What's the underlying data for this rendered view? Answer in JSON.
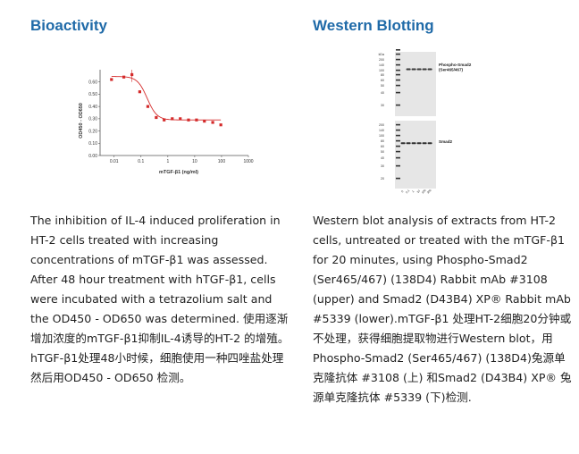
{
  "left": {
    "heading": "Bioactivity",
    "description": "The inhibition of IL-4 induced proliferation in HT-2 cells treated with increasing concentrations of mTGF-β1 was assessed. After 48 hour treatment with hTGF-β1, cells were incubated with a tetrazolium salt and the OD450 - OD650 was determined. 使用逐渐增加浓度的mTGF-β1抑制IL-4诱导的HT-2 的增殖。hTGF-β1处理48小时候，细胞使用一种四唑盐处理然后用OD450 - OD650 检测。"
  },
  "right": {
    "heading": "Western Blotting",
    "description": "Western blot analysis of extracts from HT-2 cells, untreated or treated with the mTGF-β1 for 20 minutes, using Phospho-Smad2 (Ser465/467) (138D4) Rabbit mAb #3108 (upper) and Smad2 (D43B4) XP® Rabbit mAb #5339 (lower).mTGF-β1 处理HT-2细胞20分钟或不处理，获得细胞提取物进行Western blot，用Phospho-Smad2 (Ser465/467) (138D4)兔源单克隆抗体 #3108 (上) 和Smad2 (D43B4) XP® 兔源单克隆抗体 #5339 (下)检测."
  },
  "chart_data": {
    "type": "scatter",
    "xlabel": "mTGF-β1 (ng/ml)",
    "ylabel": "OD450 - OD650",
    "x_scale": "log",
    "xlim": [
      0.003,
      1000
    ],
    "ylim": [
      0.0,
      0.7
    ],
    "xticks": [
      "0.01",
      "0.1",
      "1",
      "10",
      "100",
      "1000"
    ],
    "yticks": [
      "0.00",
      "0.10",
      "0.20",
      "0.30",
      "0.40",
      "0.50",
      "0.60"
    ],
    "color": "#d42a2a",
    "x": [
      0.008,
      0.023,
      0.046,
      0.09,
      0.18,
      0.37,
      0.73,
      1.46,
      2.9,
      5.9,
      11.7,
      23,
      47,
      94
    ],
    "y": [
      0.62,
      0.64,
      0.66,
      0.52,
      0.4,
      0.31,
      0.29,
      0.3,
      0.3,
      0.29,
      0.29,
      0.28,
      0.27,
      0.25
    ]
  },
  "blot": {
    "upper_label": "Phospho-Smad2 (Ser465/467)",
    "lower_label": "Smad2",
    "ladder_upper": [
      "kDa",
      "200",
      "140",
      "100",
      "80",
      "60",
      "50",
      "40",
      "30",
      "20"
    ],
    "ladder_lower": [
      "200",
      "140",
      "100",
      "80",
      "60",
      "50",
      "40",
      "30",
      "20"
    ],
    "lane_labels": [
      "0",
      "0.1",
      "1",
      "10",
      "100",
      "300"
    ]
  }
}
